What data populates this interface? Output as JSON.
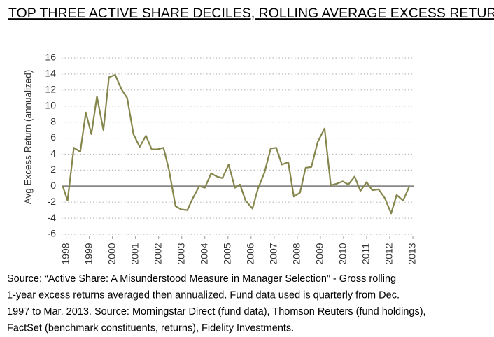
{
  "chart_data": {
    "type": "line",
    "title": "TOP THREE ACTIVE SHARE DECILES, ROLLING AVERAGE EXCESS RETURN",
    "y_label": "Avg Excess Return (annualized)",
    "source_lines": [
      "Source: “Active Share: A Misunderstood Measure in Manager Selection” - Gross rolling",
      "1-year excess returns averaged then annualized. Fund data used is quarterly from Dec.",
      "1997 to Mar. 2013. Source: Morningstar Direct (fund data), Thomson Reuters (fund holdings),",
      "FactSet (benchmark constituents, returns), Fidelity Investments."
    ],
    "x": [
      1997.85,
      1998.06,
      1998.33,
      1998.61,
      1998.85,
      1999.09,
      1999.33,
      1999.61,
      1999.85,
      2000.12,
      2000.39,
      2000.64,
      2000.91,
      2001.18,
      2001.45,
      2001.7,
      2001.94,
      2002.21,
      2002.45,
      2002.73,
      2002.97,
      2003.24,
      2003.48,
      2003.76,
      2004.0,
      2004.27,
      2004.52,
      2004.76,
      2005.03,
      2005.3,
      2005.52,
      2005.76,
      2006.06,
      2006.3,
      2006.58,
      2006.85,
      2007.09,
      2007.33,
      2007.61,
      2007.85,
      2008.12,
      2008.36,
      2008.61,
      2008.88,
      2009.18,
      2009.45,
      2009.7,
      2009.97,
      2010.21,
      2010.48,
      2010.73,
      2011.0,
      2011.24,
      2011.52,
      2011.79,
      2012.06,
      2012.3,
      2012.58,
      2012.85
    ],
    "series": [
      {
        "name": "Top three deciles",
        "color": "#85864c",
        "values": [
          0,
          -1.8,
          4.8,
          4.3,
          9.2,
          6.5,
          11.2,
          7.0,
          13.6,
          13.9,
          12.1,
          11.0,
          6.5,
          4.9,
          6.3,
          4.6,
          4.6,
          4.8,
          2.0,
          -2.5,
          -2.9,
          -3.0,
          -1.5,
          0.0,
          -0.2,
          1.6,
          1.2,
          1.0,
          2.7,
          -0.2,
          0.2,
          -1.8,
          -2.8,
          -0.3,
          1.7,
          4.7,
          4.8,
          2.7,
          3.0,
          -1.3,
          -0.8,
          2.3,
          2.4,
          5.5,
          7.2,
          0.1,
          0.3,
          0.6,
          0.2,
          1.2,
          -0.6,
          0.5,
          -0.5,
          -0.4,
          -1.5,
          -3.4,
          -1.1,
          -1.8,
          0.0
        ]
      }
    ],
    "xlim": [
      1997.8,
      2013.06
    ],
    "xticks": [
      1998,
      1999,
      2000,
      2001,
      2002,
      2003,
      2004,
      2005,
      2006,
      2007,
      2008,
      2009,
      2010,
      2011,
      2012,
      2013
    ],
    "ylim": [
      -6,
      16
    ],
    "yticks": [
      -6,
      -4,
      -2,
      0,
      2,
      4,
      6,
      8,
      10,
      12,
      14,
      16
    ],
    "grid": true
  }
}
